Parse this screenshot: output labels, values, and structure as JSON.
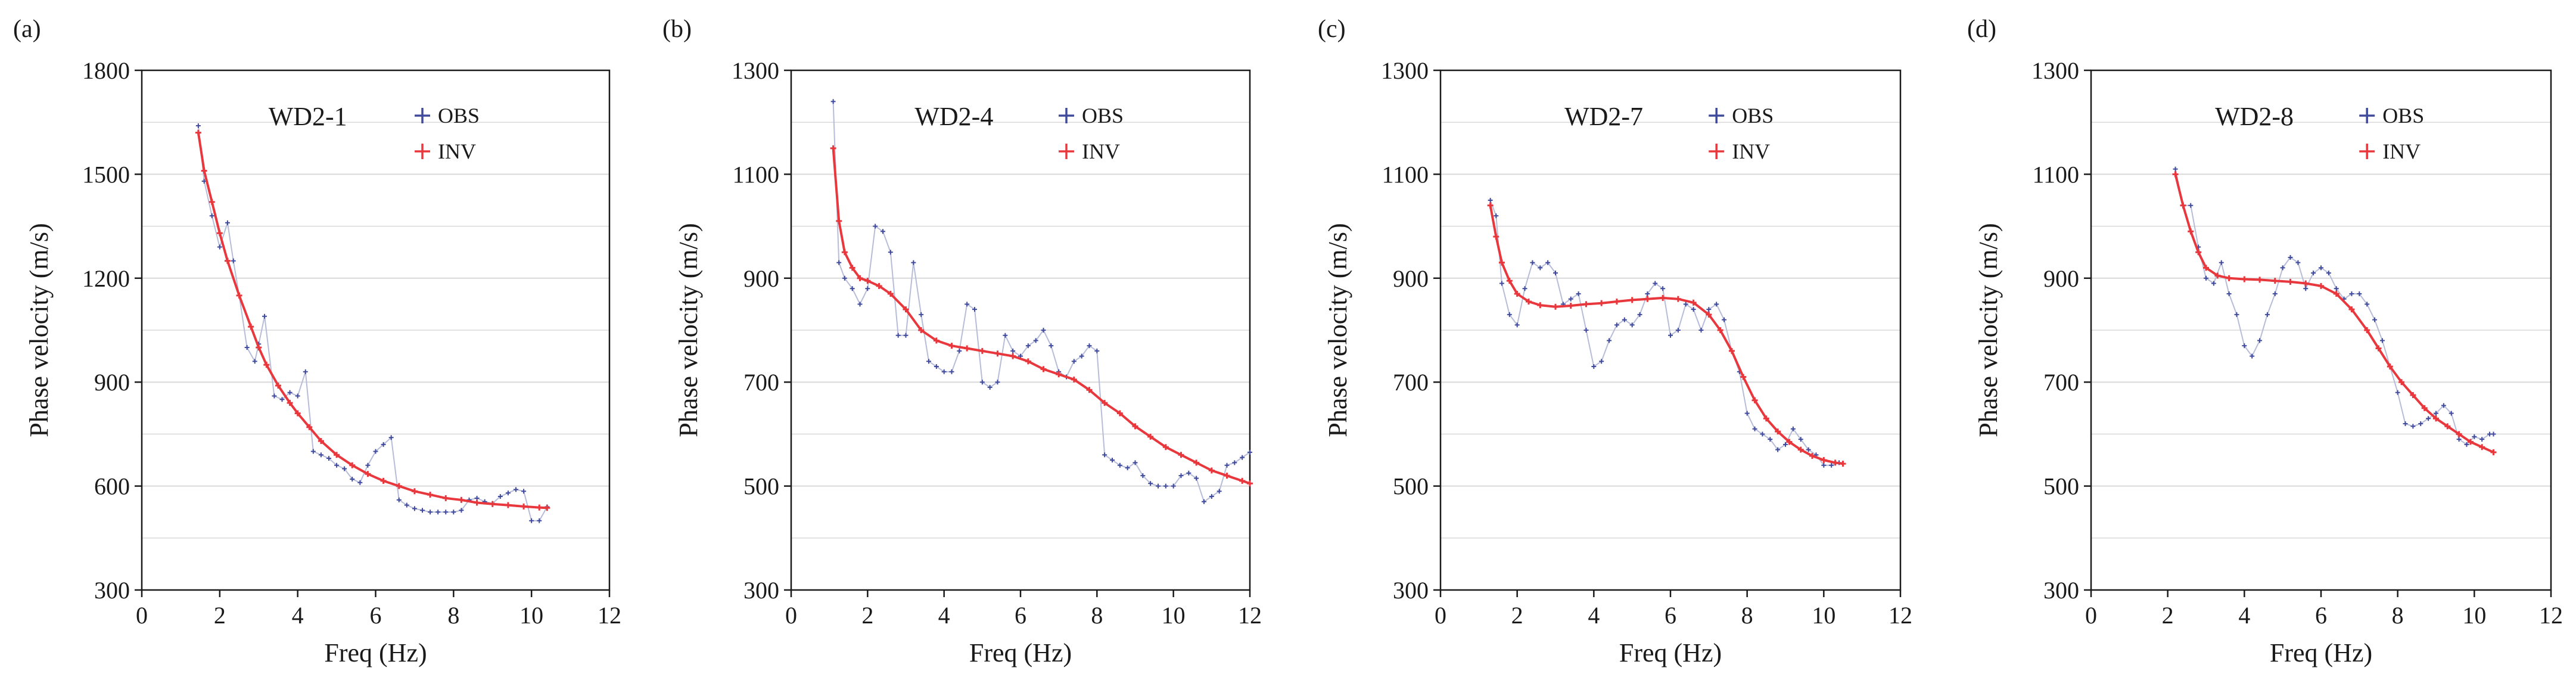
{
  "colors": {
    "obs": "#3f4a9c",
    "inv": "#e8383d",
    "grid": "#d9d9d9",
    "axis": "#1a1a1a",
    "connector": "#b7bcd9"
  },
  "chart_data": [
    {
      "panel_label": "(a)",
      "type": "line",
      "title": "WD2-1",
      "xlabel": "Freq (Hz)",
      "ylabel": "Phase velocity (m/s)",
      "xlim": [
        0,
        12
      ],
      "ylim": [
        300,
        1800
      ],
      "xticks": [
        0,
        2,
        4,
        6,
        8,
        10,
        12
      ],
      "yticks": [
        300,
        600,
        900,
        1200,
        1500,
        1800
      ],
      "legend": {
        "position": "top-right",
        "entries": [
          "OBS",
          "INV"
        ]
      },
      "series": [
        {
          "name": "OBS",
          "x": [
            1.45,
            1.6,
            1.8,
            2.0,
            2.2,
            2.35,
            2.5,
            2.7,
            2.9,
            3.0,
            3.15,
            3.4,
            3.6,
            3.8,
            4.0,
            4.2,
            4.4,
            4.6,
            4.8,
            5.0,
            5.2,
            5.4,
            5.6,
            5.8,
            6.0,
            6.2,
            6.4,
            6.6,
            6.8,
            7.0,
            7.2,
            7.4,
            7.6,
            7.8,
            8.0,
            8.2,
            8.4,
            8.6,
            8.8,
            9.0,
            9.2,
            9.4,
            9.6,
            9.8,
            10.0,
            10.2,
            10.4
          ],
          "y": [
            1640,
            1480,
            1380,
            1290,
            1360,
            1250,
            1150,
            1000,
            960,
            1010,
            1090,
            860,
            850,
            870,
            860,
            930,
            700,
            690,
            680,
            660,
            650,
            620,
            610,
            660,
            700,
            720,
            740,
            560,
            545,
            535,
            530,
            525,
            525,
            525,
            525,
            530,
            560,
            565,
            555,
            550,
            570,
            580,
            590,
            585,
            500,
            500,
            540
          ]
        },
        {
          "name": "INV",
          "x": [
            1.45,
            1.6,
            1.8,
            2.0,
            2.2,
            2.5,
            2.8,
            3.0,
            3.2,
            3.5,
            3.8,
            4.0,
            4.3,
            4.6,
            5.0,
            5.4,
            5.8,
            6.2,
            6.6,
            7.0,
            7.4,
            7.8,
            8.2,
            8.6,
            9.0,
            9.4,
            9.8,
            10.2,
            10.4
          ],
          "y": [
            1620,
            1510,
            1420,
            1330,
            1250,
            1150,
            1060,
            1000,
            950,
            890,
            840,
            810,
            770,
            730,
            690,
            660,
            635,
            615,
            600,
            585,
            575,
            565,
            560,
            552,
            548,
            545,
            541,
            538,
            537
          ]
        }
      ]
    },
    {
      "panel_label": "(b)",
      "type": "line",
      "title": "WD2-4",
      "xlabel": "Freq (Hz)",
      "ylabel": "Phase velocity (m/s)",
      "xlim": [
        0,
        12
      ],
      "ylim": [
        300,
        1300
      ],
      "xticks": [
        0,
        2,
        4,
        6,
        8,
        10,
        12
      ],
      "yticks": [
        300,
        500,
        700,
        900,
        1100,
        1300
      ],
      "legend": {
        "position": "top-right",
        "entries": [
          "OBS",
          "INV"
        ]
      },
      "series": [
        {
          "name": "OBS",
          "x": [
            1.1,
            1.25,
            1.4,
            1.6,
            1.8,
            2.0,
            2.2,
            2.4,
            2.6,
            2.8,
            3.0,
            3.2,
            3.4,
            3.6,
            3.8,
            4.0,
            4.2,
            4.4,
            4.6,
            4.8,
            5.0,
            5.2,
            5.4,
            5.6,
            5.8,
            6.0,
            6.2,
            6.4,
            6.6,
            6.8,
            7.0,
            7.2,
            7.4,
            7.6,
            7.8,
            8.0,
            8.2,
            8.4,
            8.6,
            8.8,
            9.0,
            9.2,
            9.4,
            9.6,
            9.8,
            10.0,
            10.2,
            10.4,
            10.6,
            10.8,
            11.0,
            11.2,
            11.4,
            11.6,
            11.8,
            12.0
          ],
          "y": [
            1240,
            930,
            900,
            880,
            850,
            880,
            1000,
            990,
            950,
            790,
            790,
            930,
            830,
            740,
            730,
            720,
            720,
            760,
            850,
            840,
            700,
            690,
            700,
            790,
            760,
            750,
            770,
            780,
            800,
            770,
            720,
            710,
            740,
            750,
            770,
            760,
            560,
            550,
            540,
            535,
            545,
            520,
            505,
            500,
            500,
            500,
            520,
            525,
            515,
            470,
            480,
            490,
            540,
            545,
            555,
            565
          ]
        },
        {
          "name": "INV",
          "x": [
            1.1,
            1.25,
            1.4,
            1.6,
            1.8,
            2.0,
            2.3,
            2.6,
            3.0,
            3.4,
            3.8,
            4.2,
            4.6,
            5.0,
            5.4,
            5.8,
            6.2,
            6.6,
            7.0,
            7.4,
            7.8,
            8.2,
            8.6,
            9.0,
            9.4,
            9.8,
            10.2,
            10.6,
            11.0,
            11.4,
            11.8,
            12.0
          ],
          "y": [
            1150,
            1010,
            950,
            920,
            900,
            895,
            885,
            870,
            840,
            800,
            780,
            770,
            765,
            760,
            755,
            750,
            740,
            725,
            715,
            705,
            685,
            660,
            640,
            615,
            595,
            575,
            560,
            545,
            530,
            520,
            510,
            505
          ]
        }
      ]
    },
    {
      "panel_label": "(c)",
      "type": "line",
      "title": "WD2-7",
      "xlabel": "Freq (Hz)",
      "ylabel": "Phase velocity (m/s)",
      "xlim": [
        0,
        12
      ],
      "ylim": [
        300,
        1300
      ],
      "xticks": [
        0,
        2,
        4,
        6,
        8,
        10,
        12
      ],
      "yticks": [
        300,
        500,
        700,
        900,
        1100,
        1300
      ],
      "legend": {
        "position": "top-right",
        "entries": [
          "OBS",
          "INV"
        ]
      },
      "series": [
        {
          "name": "OBS",
          "x": [
            1.3,
            1.45,
            1.6,
            1.8,
            2.0,
            2.2,
            2.4,
            2.6,
            2.8,
            3.0,
            3.2,
            3.4,
            3.6,
            3.8,
            4.0,
            4.2,
            4.4,
            4.6,
            4.8,
            5.0,
            5.2,
            5.4,
            5.6,
            5.8,
            6.0,
            6.2,
            6.4,
            6.6,
            6.8,
            7.0,
            7.2,
            7.4,
            7.6,
            7.8,
            8.0,
            8.2,
            8.4,
            8.6,
            8.8,
            9.0,
            9.2,
            9.4,
            9.6,
            9.8,
            10.0,
            10.2,
            10.4
          ],
          "y": [
            1050,
            1020,
            890,
            830,
            810,
            880,
            930,
            920,
            930,
            910,
            850,
            860,
            870,
            800,
            730,
            740,
            780,
            810,
            820,
            810,
            830,
            870,
            890,
            880,
            790,
            800,
            850,
            840,
            800,
            840,
            850,
            820,
            760,
            720,
            640,
            610,
            600,
            590,
            570,
            580,
            610,
            590,
            570,
            560,
            540,
            540,
            545
          ]
        },
        {
          "name": "INV",
          "x": [
            1.3,
            1.45,
            1.6,
            1.8,
            2.0,
            2.3,
            2.6,
            3.0,
            3.4,
            3.8,
            4.2,
            4.6,
            5.0,
            5.4,
            5.8,
            6.2,
            6.6,
            7.0,
            7.3,
            7.6,
            7.9,
            8.2,
            8.5,
            8.8,
            9.1,
            9.4,
            9.7,
            10.0,
            10.3,
            10.5
          ],
          "y": [
            1040,
            980,
            930,
            895,
            870,
            855,
            848,
            845,
            847,
            850,
            852,
            855,
            858,
            860,
            862,
            860,
            853,
            830,
            800,
            760,
            710,
            665,
            630,
            605,
            585,
            570,
            558,
            550,
            545,
            543
          ]
        }
      ]
    },
    {
      "panel_label": "(d)",
      "type": "line",
      "title": "WD2-8",
      "xlabel": "Freq (Hz)",
      "ylabel": "Phase velocity (m/s)",
      "xlim": [
        0,
        12
      ],
      "ylim": [
        300,
        1300
      ],
      "xticks": [
        0,
        2,
        4,
        6,
        8,
        10,
        12
      ],
      "yticks": [
        300,
        500,
        700,
        900,
        1100,
        1300
      ],
      "legend": {
        "position": "top-right",
        "entries": [
          "OBS",
          "INV"
        ]
      },
      "series": [
        {
          "name": "OBS",
          "x": [
            2.2,
            2.4,
            2.6,
            2.8,
            3.0,
            3.2,
            3.4,
            3.6,
            3.8,
            4.0,
            4.2,
            4.4,
            4.6,
            4.8,
            5.0,
            5.2,
            5.4,
            5.6,
            5.8,
            6.0,
            6.2,
            6.4,
            6.6,
            6.8,
            7.0,
            7.2,
            7.4,
            7.6,
            7.8,
            8.0,
            8.2,
            8.4,
            8.6,
            8.8,
            9.0,
            9.2,
            9.4,
            9.6,
            9.8,
            10.0,
            10.2,
            10.4,
            10.5
          ],
          "y": [
            1110,
            1040,
            1040,
            960,
            900,
            890,
            930,
            870,
            830,
            770,
            750,
            780,
            830,
            870,
            920,
            940,
            930,
            880,
            910,
            920,
            910,
            880,
            860,
            870,
            870,
            850,
            820,
            780,
            730,
            680,
            620,
            615,
            620,
            630,
            640,
            655,
            640,
            590,
            580,
            595,
            590,
            600,
            600
          ]
        },
        {
          "name": "INV",
          "x": [
            2.2,
            2.4,
            2.6,
            2.8,
            3.0,
            3.3,
            3.6,
            4.0,
            4.4,
            4.8,
            5.2,
            5.6,
            6.0,
            6.4,
            6.8,
            7.2,
            7.5,
            7.8,
            8.1,
            8.4,
            8.7,
            9.0,
            9.3,
            9.6,
            9.9,
            10.2,
            10.5
          ],
          "y": [
            1100,
            1040,
            990,
            950,
            920,
            905,
            900,
            898,
            897,
            895,
            893,
            890,
            885,
            870,
            840,
            800,
            765,
            730,
            700,
            675,
            650,
            630,
            615,
            600,
            585,
            575,
            565
          ]
        }
      ]
    }
  ]
}
